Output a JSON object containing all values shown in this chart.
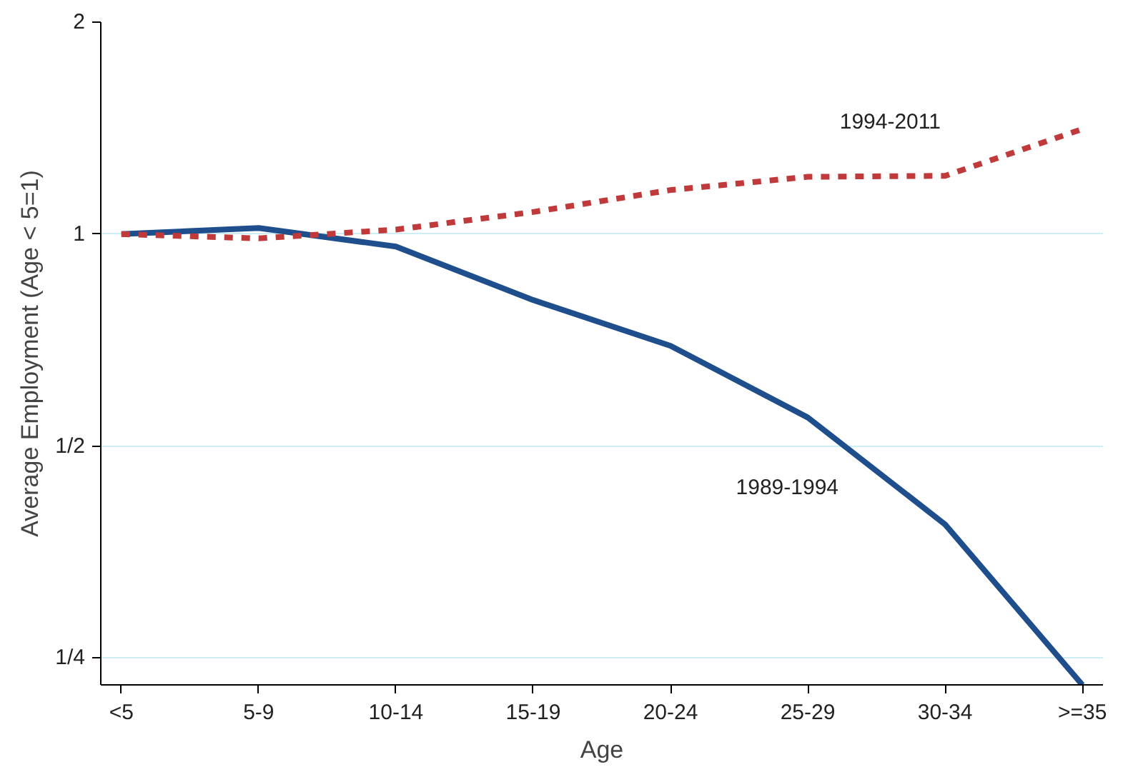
{
  "chart_data": {
    "type": "line",
    "xlabel": "Age",
    "ylabel": "Average Employment (Age < 5=1)",
    "categories": [
      "<5",
      "5-9",
      "10-14",
      "15-19",
      "20-24",
      "25-29",
      "30-34",
      ">=35"
    ],
    "series": [
      {
        "name": "1989-1994",
        "color": "#1f4e8c",
        "line_style": "solid",
        "values": [
          1.0,
          1.02,
          0.96,
          0.806,
          0.694,
          0.549,
          0.387,
          0.229
        ]
      },
      {
        "name": "1994-2011",
        "color": "#c0393b",
        "line_style": "dashed",
        "values": [
          1.0,
          0.986,
          1.015,
          1.075,
          1.155,
          1.206,
          1.21,
          1.41
        ]
      }
    ],
    "log": "y",
    "ylim": [
      0.229,
      2
    ],
    "yticks": [
      {
        "value": 0.25,
        "label": "1/4"
      },
      {
        "value": 0.5,
        "label": "1/2"
      },
      1,
      2
    ],
    "grid": "y",
    "legend": false,
    "marker": "none"
  }
}
